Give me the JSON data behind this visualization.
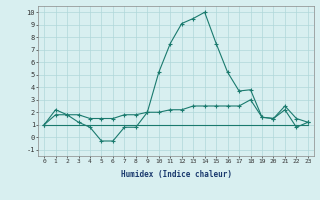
{
  "x": [
    0,
    1,
    2,
    3,
    4,
    5,
    6,
    7,
    8,
    9,
    10,
    11,
    12,
    13,
    14,
    15,
    16,
    17,
    18,
    19,
    20,
    21,
    22,
    23
  ],
  "line1": [
    1.0,
    2.2,
    1.8,
    1.2,
    0.8,
    -0.3,
    -0.3,
    0.8,
    0.8,
    2.0,
    5.2,
    7.5,
    9.1,
    9.5,
    10.0,
    7.5,
    5.2,
    3.7,
    3.8,
    1.6,
    1.5,
    2.2,
    0.8,
    1.2
  ],
  "line2": [
    1.0,
    1.8,
    1.8,
    1.8,
    1.5,
    1.5,
    1.5,
    1.8,
    1.8,
    2.0,
    2.0,
    2.2,
    2.2,
    2.5,
    2.5,
    2.5,
    2.5,
    2.5,
    3.0,
    1.6,
    1.5,
    2.5,
    1.5,
    1.2
  ],
  "line3": [
    1.0,
    1.0,
    1.0,
    1.0,
    1.0,
    1.0,
    1.0,
    1.0,
    1.0,
    1.0,
    1.0,
    1.0,
    1.0,
    1.0,
    1.0,
    1.0,
    1.0,
    1.0,
    1.0,
    1.0,
    1.0,
    1.0,
    1.0,
    1.0
  ],
  "line_color": "#1a7a6e",
  "bg_color": "#d8eff0",
  "grid_color": "#b0d8da",
  "xlabel": "Humidex (Indice chaleur)",
  "xlim": [
    -0.5,
    23.5
  ],
  "ylim": [
    -1.5,
    10.5
  ],
  "yticks": [
    -1,
    0,
    1,
    2,
    3,
    4,
    5,
    6,
    7,
    8,
    9,
    10
  ],
  "xticks": [
    0,
    1,
    2,
    3,
    4,
    5,
    6,
    7,
    8,
    9,
    10,
    11,
    12,
    13,
    14,
    15,
    16,
    17,
    18,
    19,
    20,
    21,
    22,
    23
  ]
}
